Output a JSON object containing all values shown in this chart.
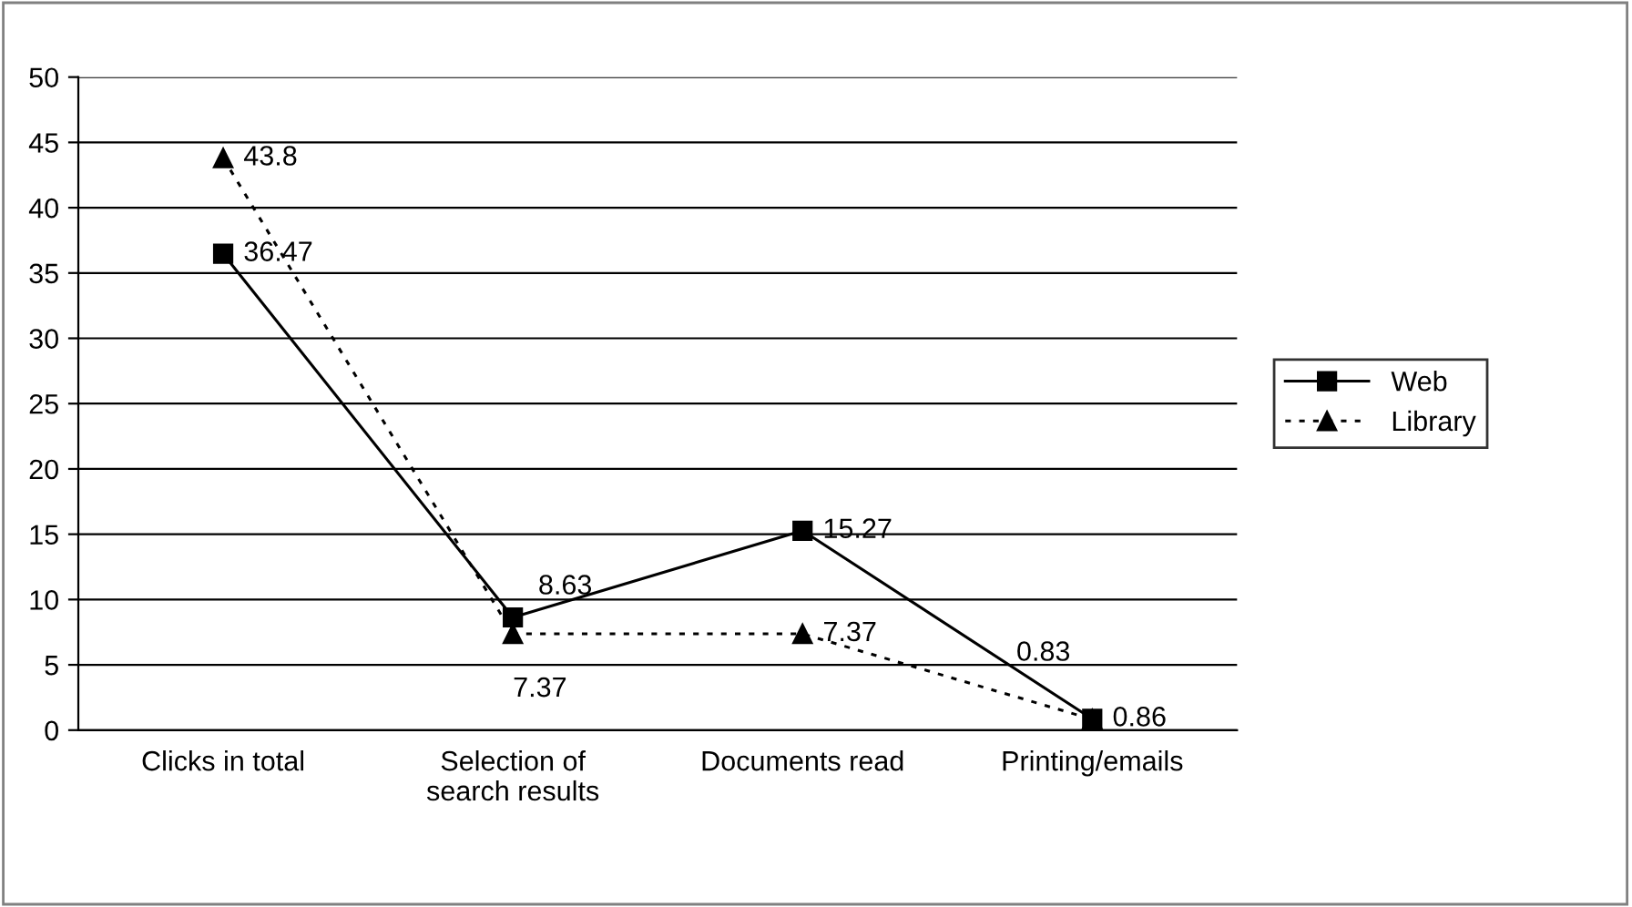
{
  "chart_data": {
    "type": "line",
    "categories": [
      "Clicks in total",
      "Selection of\nsearch results",
      "Documents read",
      "Printing/emails"
    ],
    "series": [
      {
        "name": "Web",
        "color": "#000000",
        "values": [
          36.47,
          8.63,
          15.27,
          0.86
        ],
        "marker": "square",
        "line_style": "solid"
      },
      {
        "name": "Library",
        "color": "#000000",
        "values": [
          43.8,
          7.37,
          7.37,
          0.83
        ],
        "marker": "triangle",
        "line_style": "dotted"
      }
    ],
    "ylim": [
      0,
      50
    ],
    "yticks": [
      0,
      5,
      10,
      15,
      20,
      25,
      30,
      35,
      40,
      45,
      50
    ],
    "grid": "y",
    "legend": "right",
    "data_labels": true
  }
}
